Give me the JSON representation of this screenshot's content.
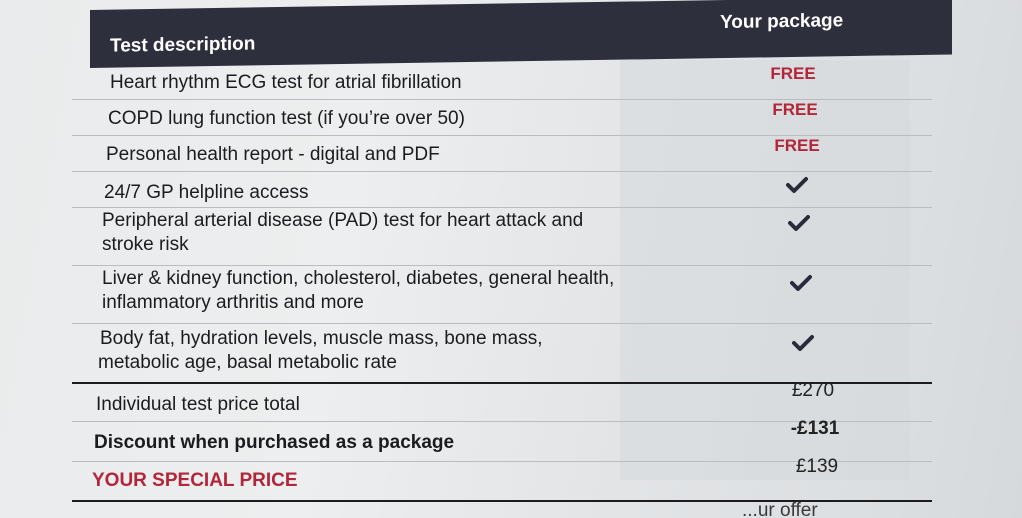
{
  "table": {
    "header": {
      "description": "Test description",
      "package": "Your package"
    },
    "rows": [
      {
        "description": "Heart rhythm ECG test for atrial fibrillation",
        "value": "FREE",
        "kind": "free"
      },
      {
        "description": "COPD lung function test (if you’re over 50)",
        "value": "FREE",
        "kind": "free"
      },
      {
        "description": "Personal health report - digital and PDF",
        "value": "FREE",
        "kind": "free"
      },
      {
        "description": "24/7 GP helpline access",
        "value": "",
        "kind": "check",
        "icon": "check-icon"
      },
      {
        "description": "Peripheral arterial disease (PAD) test for heart attack and",
        "description2": "stroke risk",
        "value": "",
        "kind": "check",
        "icon": "check-icon"
      },
      {
        "description": "Liver & kidney function, cholesterol, diabetes, general health,",
        "description2": "inflammatory arthritis and more",
        "value": "",
        "kind": "check",
        "icon": "check-icon"
      },
      {
        "description": "Body fat, hydration levels, muscle mass, bone mass,",
        "description2": "metabolic age, basal metabolic rate",
        "value": "",
        "kind": "check",
        "icon": "check-icon"
      }
    ],
    "totals": {
      "individual_label": "Individual test price total",
      "individual_value": "£270",
      "discount_label": "Discount when purchased as a package",
      "discount_value": "-£131",
      "special_label": "YOUR SPECIAL PRICE",
      "special_value": "£139"
    }
  },
  "bottom_text": "...ur offer",
  "colors": {
    "header_bg": "#2e2f3d",
    "accent_red": "#b3263a"
  }
}
